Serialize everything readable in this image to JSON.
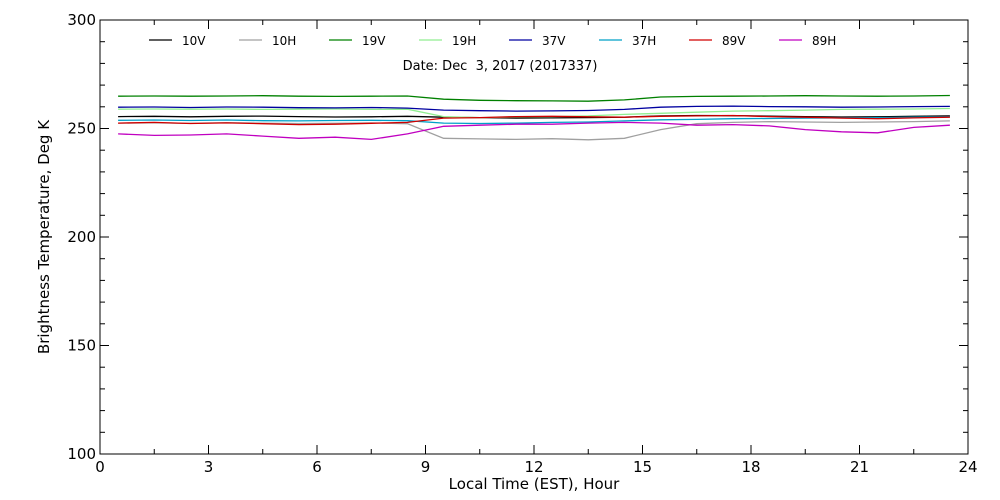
{
  "chart_data": {
    "type": "line",
    "title": "Date: Dec  3, 2017 (2017337)",
    "xlabel": "Local Time (EST), Hour",
    "ylabel": "Brightness Temperature, Deg K",
    "xlim": [
      0,
      24
    ],
    "ylim": [
      100,
      300
    ],
    "x_ticks": [
      0,
      3,
      6,
      9,
      12,
      15,
      18,
      21,
      24
    ],
    "y_ticks": [
      100,
      150,
      200,
      250,
      300
    ],
    "grid": false,
    "legend_position": "top",
    "x": [
      0.5,
      1.5,
      2.5,
      3.5,
      4.5,
      5.5,
      6.5,
      7.5,
      8.5,
      9.5,
      10.5,
      11.5,
      12.5,
      13.5,
      14.5,
      15.5,
      16.5,
      17.5,
      18.5,
      19.5,
      20.5,
      21.5,
      22.5,
      23.5
    ],
    "series": [
      {
        "name": "10V",
        "color": "#000000",
        "values": [
          255.5,
          255.6,
          255.4,
          255.6,
          255.7,
          255.5,
          255.3,
          255.4,
          255.6,
          255.2,
          255.0,
          254.8,
          254.9,
          255.0,
          255.2,
          255.8,
          256.0,
          255.9,
          255.7,
          255.5,
          255.3,
          255.4,
          255.6,
          255.8
        ]
      },
      {
        "name": "10H",
        "color": "#a0a0a0",
        "values": [
          252.5,
          252.6,
          252.4,
          252.7,
          252.5,
          252.3,
          252.4,
          252.6,
          252.2,
          245.5,
          245.2,
          245.0,
          245.3,
          244.8,
          245.5,
          249.5,
          252.2,
          252.8,
          253.2,
          253.0,
          252.8,
          253.0,
          253.2,
          253.5
        ]
      },
      {
        "name": "19V",
        "color": "#008000",
        "values": [
          264.9,
          265.0,
          264.9,
          265.0,
          265.1,
          264.9,
          264.8,
          264.9,
          265.0,
          263.5,
          263.0,
          262.8,
          262.7,
          262.6,
          263.2,
          264.5,
          264.8,
          264.9,
          265.0,
          265.1,
          265.0,
          264.9,
          265.0,
          265.2
        ]
      },
      {
        "name": "19H",
        "color": "#90ee90",
        "values": [
          258.9,
          259.0,
          258.9,
          259.0,
          258.8,
          258.9,
          259.0,
          258.8,
          258.9,
          255.5,
          255.0,
          255.3,
          255.5,
          255.8,
          256.5,
          257.0,
          257.5,
          258.0,
          258.2,
          258.5,
          258.8,
          258.9,
          259.0,
          259.2
        ]
      },
      {
        "name": "37V",
        "color": "#0000a0",
        "values": [
          259.8,
          259.9,
          259.7,
          259.9,
          259.8,
          259.6,
          259.5,
          259.7,
          259.4,
          258.5,
          258.2,
          258.0,
          258.1,
          258.3,
          258.8,
          259.8,
          260.2,
          260.3,
          260.1,
          260.0,
          259.8,
          259.9,
          260.1,
          260.2
        ]
      },
      {
        "name": "37H",
        "color": "#00a0c8",
        "values": [
          253.8,
          253.9,
          253.7,
          253.9,
          253.6,
          253.5,
          253.7,
          253.8,
          253.6,
          252.5,
          252.3,
          252.5,
          252.8,
          253.0,
          253.5,
          254.0,
          254.2,
          254.5,
          254.6,
          254.8,
          254.9,
          255.0,
          255.2,
          255.4
        ]
      },
      {
        "name": "89V",
        "color": "#d00000",
        "values": [
          252.5,
          252.8,
          252.3,
          252.6,
          252.2,
          251.8,
          252.0,
          252.4,
          252.8,
          254.8,
          255.0,
          255.5,
          255.6,
          255.4,
          255.2,
          255.6,
          255.8,
          256.0,
          255.5,
          255.2,
          254.8,
          254.5,
          254.9,
          255.2
        ]
      },
      {
        "name": "89H",
        "color": "#c000c0",
        "values": [
          247.5,
          246.8,
          247.0,
          247.5,
          246.5,
          245.5,
          246.0,
          245.0,
          247.5,
          251.0,
          251.5,
          252.0,
          252.0,
          252.5,
          252.8,
          252.5,
          251.5,
          251.8,
          251.2,
          249.5,
          248.5,
          248.0,
          250.5,
          251.5
        ]
      }
    ]
  }
}
